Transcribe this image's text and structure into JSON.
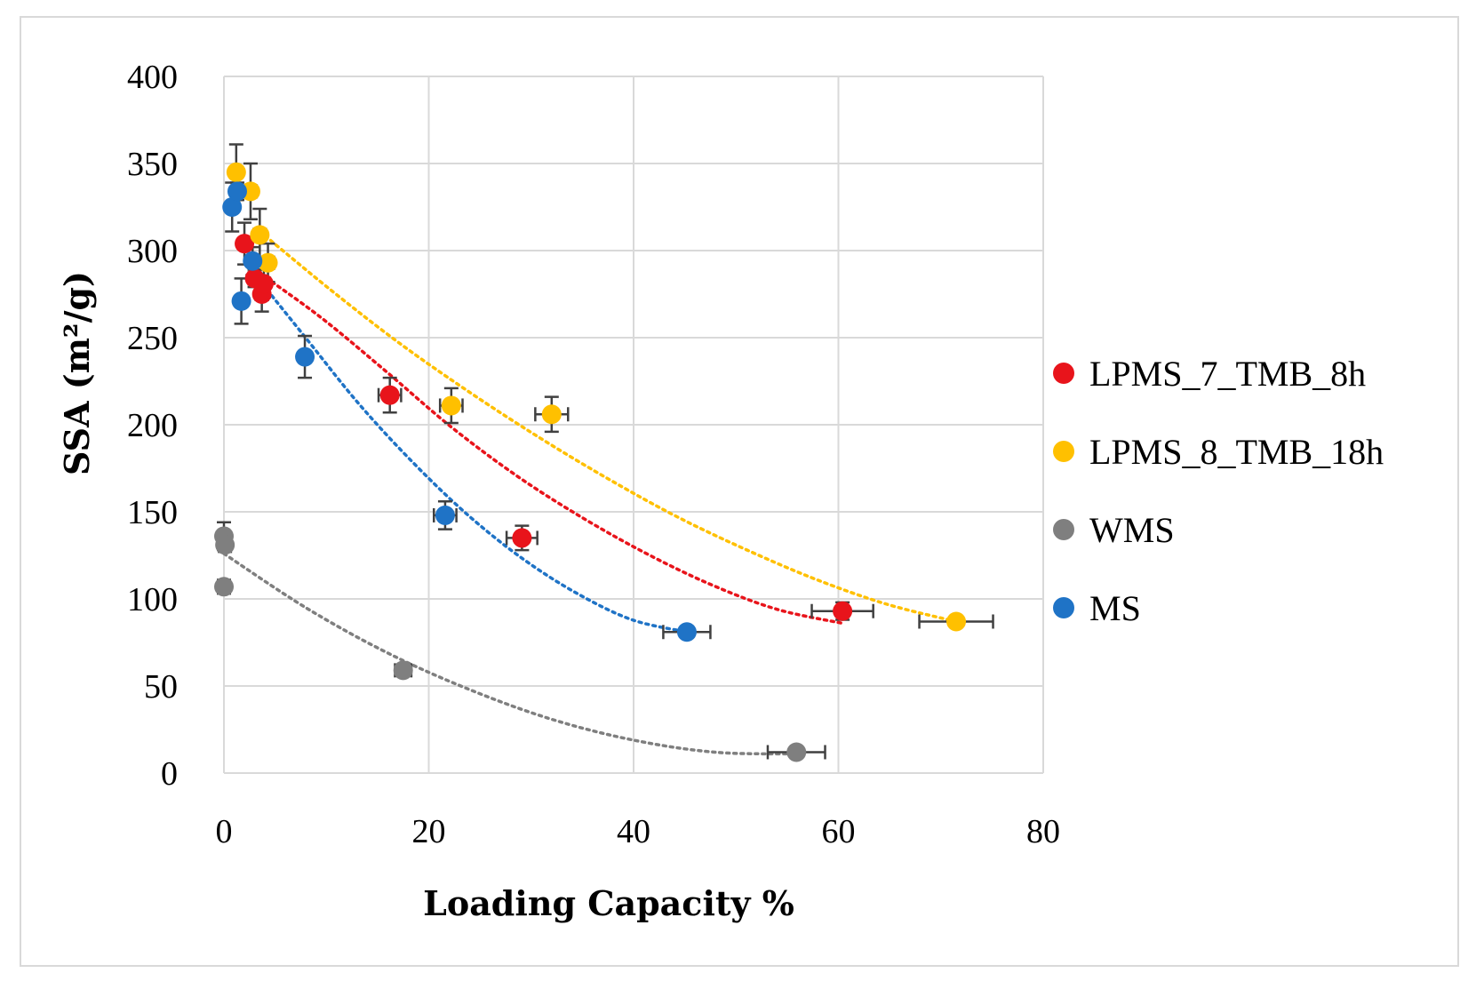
{
  "chart_data": {
    "type": "scatter",
    "title": "",
    "xlabel": "Loading Capacity %",
    "ylabel": "SSA (m²/g)",
    "xlim": [
      0,
      80
    ],
    "ylim": [
      0,
      400
    ],
    "x_ticks": [
      0,
      20,
      40,
      60,
      80
    ],
    "y_ticks": [
      0,
      50,
      100,
      150,
      200,
      250,
      300,
      350,
      400
    ],
    "x_tick_labels": [
      "0",
      "20",
      "40",
      "60",
      "80"
    ],
    "y_tick_labels": [
      "0",
      "50",
      "100",
      "150",
      "200",
      "250",
      "300",
      "350",
      "400"
    ],
    "grid": true,
    "legend_position": "right",
    "series": [
      {
        "name": "LPMS_7_TMB_8h",
        "color": "#e8141b",
        "points": [
          {
            "x": 2.0,
            "y": 304,
            "xerr": 0,
            "yerr": 12
          },
          {
            "x": 3.0,
            "y": 284,
            "xerr": 0.6,
            "yerr": 5
          },
          {
            "x": 3.7,
            "y": 275,
            "xerr": 0.6,
            "yerr": 10
          },
          {
            "x": 3.9,
            "y": 281,
            "xerr": 0.6,
            "yerr": 8
          },
          {
            "x": 16.2,
            "y": 217,
            "xerr": 1.1,
            "yerr": 10
          },
          {
            "x": 29.1,
            "y": 135,
            "xerr": 1.5,
            "yerr": 7
          },
          {
            "x": 60.4,
            "y": 93,
            "xerr": 3.0,
            "yerr": 5
          }
        ],
        "trend": {
          "x_range": [
            3,
            60.4
          ],
          "y_at": [
            289,
            262,
            231,
            199,
            171,
            147,
            126,
            108,
            94,
            86
          ]
        }
      },
      {
        "name": "LPMS_8_TMB_18h",
        "color": "#ffc000",
        "points": [
          {
            "x": 1.2,
            "y": 345,
            "xerr": 0,
            "yerr": 16
          },
          {
            "x": 2.6,
            "y": 334,
            "xerr": 0.6,
            "yerr": 16
          },
          {
            "x": 3.5,
            "y": 309,
            "xerr": 0.6,
            "yerr": 15
          },
          {
            "x": 4.3,
            "y": 293,
            "xerr": 0.6,
            "yerr": 11
          },
          {
            "x": 22.2,
            "y": 211,
            "xerr": 1.1,
            "yerr": 10
          },
          {
            "x": 32.0,
            "y": 206,
            "xerr": 1.6,
            "yerr": 10
          },
          {
            "x": 71.5,
            "y": 87,
            "xerr": 3.6,
            "yerr": 3
          }
        ],
        "trend": {
          "x_range": [
            3.5,
            71.5
          ],
          "y_at": [
            311,
            278,
            247,
            219,
            193,
            169,
            147,
            128,
            111,
            97,
            87
          ]
        }
      },
      {
        "name": "WMS",
        "color": "#7f7f7f",
        "points": [
          {
            "x": 0.0,
            "y": 136,
            "xerr": 0,
            "yerr": 8
          },
          {
            "x": 0.1,
            "y": 131,
            "xerr": 0,
            "yerr": 4
          },
          {
            "x": 0.0,
            "y": 107,
            "xerr": 0,
            "yerr": 4
          },
          {
            "x": 17.5,
            "y": 59,
            "xerr": 0.8,
            "yerr": 3
          },
          {
            "x": 55.9,
            "y": 12,
            "xerr": 2.8,
            "yerr": 3
          }
        ],
        "trend": {
          "x_range": [
            0,
            55.9
          ],
          "y_at": [
            126,
            95,
            69,
            48,
            31,
            19,
            12,
            11
          ]
        }
      },
      {
        "name": "MS",
        "color": "#1f73c6",
        "points": [
          {
            "x": 0.8,
            "y": 325,
            "xerr": 0,
            "yerr": 14
          },
          {
            "x": 1.3,
            "y": 334,
            "xerr": 0,
            "yerr": 5
          },
          {
            "x": 1.7,
            "y": 271,
            "xerr": 0,
            "yerr": 13
          },
          {
            "x": 2.8,
            "y": 294,
            "xerr": 0,
            "yerr": 8
          },
          {
            "x": 7.9,
            "y": 239,
            "xerr": 0.5,
            "yerr": 12
          },
          {
            "x": 21.6,
            "y": 148,
            "xerr": 1.1,
            "yerr": 8
          },
          {
            "x": 45.2,
            "y": 81,
            "xerr": 2.3,
            "yerr": 3
          }
        ],
        "trend": {
          "x_range": [
            2.5,
            45.2
          ],
          "y_at": [
            290,
            251,
            212,
            178,
            148,
            123,
            103,
            88,
            81
          ]
        }
      }
    ]
  }
}
